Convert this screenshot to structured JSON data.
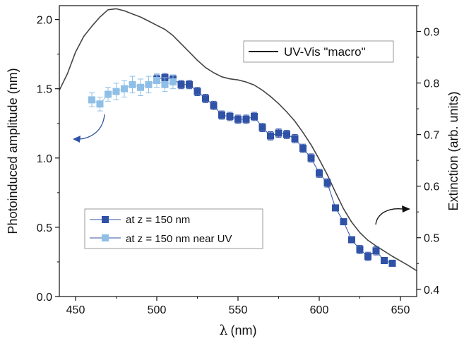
{
  "chart_data": {
    "type": "scatter",
    "x_axis": {
      "label_symbol": "λ",
      "label_unit": "(nm)",
      "range": [
        440,
        660
      ],
      "ticks": [
        450,
        500,
        550,
        600,
        650
      ],
      "tick_labels": [
        "450",
        "500",
        "550",
        "600",
        "650"
      ]
    },
    "y_axis_left": {
      "label": "Photoinduced amplitude (nm)",
      "range": [
        0.0,
        2.1
      ],
      "ticks": [
        0.0,
        0.5,
        1.0,
        1.5,
        2.0
      ],
      "tick_labels": [
        "0.0",
        "0.5",
        "1.0",
        "1.5",
        "2.0"
      ]
    },
    "y_axis_right": {
      "label": "Extinction (arb. units)",
      "range": [
        0.386,
        0.95
      ],
      "ticks": [
        0.4,
        0.5,
        0.6,
        0.7,
        0.8,
        0.9
      ],
      "tick_labels": [
        "0.4",
        "0.5",
        "0.6",
        "0.7",
        "0.8",
        "0.9"
      ]
    },
    "series": [
      {
        "name": "at z = 150 nm",
        "axis": "left",
        "color": "#2f52a6",
        "x": [
          500,
          505,
          510,
          515,
          520,
          525,
          530,
          535,
          540,
          545,
          550,
          555,
          560,
          565,
          570,
          575,
          580,
          585,
          590,
          595,
          600,
          605,
          610,
          615,
          620,
          625,
          630,
          635,
          640,
          645
        ],
        "y": [
          1.57,
          1.58,
          1.57,
          1.53,
          1.53,
          1.48,
          1.43,
          1.38,
          1.31,
          1.3,
          1.28,
          1.28,
          1.3,
          1.22,
          1.16,
          1.18,
          1.17,
          1.14,
          1.07,
          1.0,
          0.89,
          0.82,
          0.64,
          0.54,
          0.41,
          0.34,
          0.29,
          0.33,
          0.26,
          0.24
        ],
        "yerr": [
          0.03,
          0.03,
          0.03,
          0.03,
          0.03,
          0.03,
          0.03,
          0.03,
          0.03,
          0.03,
          0.03,
          0.03,
          0.03,
          0.03,
          0.03,
          0.03,
          0.03,
          0.03,
          0.03,
          0.03,
          0.03,
          0.03,
          0.02,
          0.02,
          0.02,
          0.03,
          0.03,
          0.03,
          0.02,
          0.02
        ]
      },
      {
        "name": "at z = 150 nm near UV",
        "axis": "left",
        "color": "#8fbfe6",
        "x": [
          460,
          465,
          470,
          475,
          480,
          485,
          490,
          495,
          500,
          505,
          510
        ],
        "y": [
          1.42,
          1.39,
          1.46,
          1.48,
          1.5,
          1.53,
          1.51,
          1.53,
          1.56,
          1.53,
          1.55
        ],
        "yerr": [
          0.05,
          0.05,
          0.05,
          0.06,
          0.06,
          0.06,
          0.06,
          0.06,
          0.05,
          0.05,
          0.05
        ]
      },
      {
        "name": "UV-Vis \"macro\"",
        "axis": "right",
        "color": "#444444",
        "x": [
          440,
          445,
          450,
          455,
          460,
          465,
          470,
          475,
          480,
          485,
          490,
          495,
          500,
          505,
          510,
          515,
          520,
          525,
          530,
          535,
          540,
          545,
          550,
          555,
          560,
          565,
          570,
          575,
          580,
          585,
          590,
          595,
          600,
          605,
          610,
          615,
          620,
          625,
          630,
          635,
          640,
          645,
          650,
          655,
          660
        ],
        "y": [
          0.786,
          0.818,
          0.86,
          0.89,
          0.91,
          0.928,
          0.942,
          0.944,
          0.94,
          0.934,
          0.928,
          0.92,
          0.912,
          0.904,
          0.892,
          0.876,
          0.86,
          0.844,
          0.83,
          0.82,
          0.812,
          0.808,
          0.806,
          0.802,
          0.796,
          0.786,
          0.774,
          0.76,
          0.744,
          0.726,
          0.704,
          0.68,
          0.652,
          0.622,
          0.588,
          0.556,
          0.53,
          0.51,
          0.495,
          0.484,
          0.474,
          0.464,
          0.455,
          0.446,
          0.436
        ]
      }
    ],
    "legend_upper": {
      "label": "UV-Vis \"macro\"",
      "position": "top-right"
    },
    "legend_lower": {
      "position": "lower-left",
      "labels": [
        "at z = 150 nm",
        "at z = 150 nm near UV"
      ]
    },
    "annotations": [
      {
        "type": "curved-arrow",
        "points_to": "left-axis"
      },
      {
        "type": "curved-arrow",
        "points_to": "right-axis"
      }
    ]
  }
}
